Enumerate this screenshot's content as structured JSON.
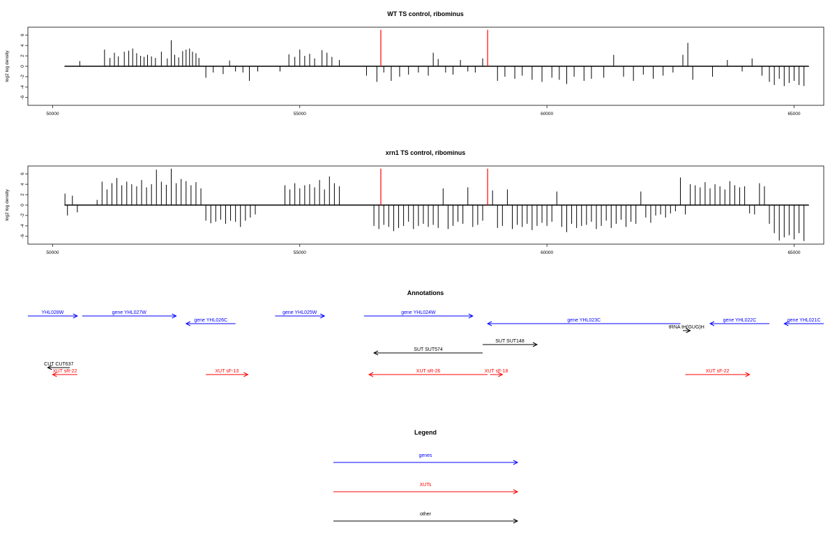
{
  "chart_data": [
    {
      "type": "bar",
      "title": "WT TS control, ribominus",
      "ylabel": "log2 log density",
      "xlim": [
        49500,
        65600
      ],
      "ylim": [
        -7.5,
        7.5
      ],
      "x_ticks": [
        50000,
        55000,
        60000,
        65000
      ],
      "y_ticks": [
        -6,
        -4,
        -2,
        0,
        2,
        4,
        6
      ],
      "baseline": [
        50240,
        65300
      ],
      "marker_color": "#ff0000",
      "markers": [
        {
          "x": 56640,
          "y": 7
        },
        {
          "x": 58800,
          "y": 7
        }
      ],
      "series": [
        {
          "x": [
            50550,
            51050,
            51160,
            51250,
            51330,
            51450,
            51540,
            51620,
            51700,
            51780,
            51850,
            51920,
            52000,
            52080,
            52200,
            52320,
            52400,
            52470,
            52550,
            52630,
            52700,
            52770,
            52830,
            52900,
            52960,
            53100,
            53250,
            53450,
            53580,
            53700,
            53850,
            53980,
            54150,
            54600,
            54780,
            54900,
            55000,
            55100,
            55200,
            55300,
            55450,
            55550,
            55650,
            55800,
            56350,
            56560,
            56700,
            56850,
            57020,
            57200,
            57400,
            57600,
            57700,
            57800,
            57950,
            58100,
            58250,
            58400,
            58550,
            58700,
            59000,
            59150,
            59350,
            59500,
            59700,
            59900,
            60100,
            60250,
            60400,
            60550,
            60750,
            60900,
            61150,
            61350,
            61550,
            61750,
            61950,
            62150,
            62350,
            62550,
            62750,
            62850,
            62950,
            63350,
            63650,
            63950,
            64150,
            64350,
            64500,
            64600,
            64700,
            64800,
            64900,
            65000,
            65100,
            65200
          ],
          "y": [
            1.0,
            3.2,
            1.6,
            2.6,
            1.9,
            2.8,
            3.0,
            3.4,
            2.5,
            2.0,
            1.8,
            2.2,
            1.9,
            1.6,
            2.8,
            1.5,
            5.0,
            2.2,
            1.7,
            2.9,
            3.2,
            3.4,
            2.8,
            2.5,
            1.6,
            -2.2,
            -1.2,
            -1.5,
            1.1,
            -1.0,
            -1.2,
            -2.8,
            -1.0,
            -1.0,
            2.3,
            1.8,
            3.2,
            2.0,
            2.4,
            1.5,
            3.1,
            2.6,
            1.8,
            1.2,
            -1.8,
            -3.0,
            -1.2,
            -2.8,
            -2.0,
            -1.6,
            -1.2,
            -1.8,
            2.6,
            1.4,
            -1.2,
            -1.6,
            1.2,
            -1.0,
            -1.2,
            1.5,
            -2.8,
            -2.0,
            -2.4,
            -1.8,
            -2.6,
            -3.0,
            -2.2,
            -2.6,
            -3.4,
            -2.0,
            -2.8,
            -2.4,
            -2.2,
            2.2,
            -2.0,
            -2.8,
            -1.6,
            -2.4,
            -1.8,
            -1.2,
            2.2,
            4.5,
            -2.6,
            -2.0,
            1.2,
            -1.0,
            1.5,
            -1.8,
            -3.0,
            -3.6,
            -2.4,
            -3.8,
            -3.2,
            -2.8,
            -3.6,
            -3.8
          ]
        }
      ]
    },
    {
      "type": "bar",
      "title": "xrn1 TS control, ribominus",
      "ylabel": "log2 log density",
      "xlim": [
        49500,
        65600
      ],
      "ylim": [
        -7.5,
        7.5
      ],
      "x_ticks": [
        50000,
        55000,
        60000,
        65000
      ],
      "y_ticks": [
        -6,
        -4,
        -2,
        0,
        2,
        4,
        6
      ],
      "baseline": [
        50240,
        65300
      ],
      "marker_color": "#ff0000",
      "markers": [
        {
          "x": 56640,
          "y": 7
        },
        {
          "x": 58800,
          "y": 7
        }
      ],
      "series": [
        {
          "x": [
            50250,
            50300,
            50400,
            50500,
            50900,
            51000,
            51100,
            51200,
            51300,
            51400,
            51500,
            51600,
            51700,
            51800,
            51900,
            52000,
            52100,
            52200,
            52300,
            52400,
            52500,
            52600,
            52700,
            52800,
            52900,
            53000,
            53100,
            53200,
            53300,
            53400,
            53500,
            53600,
            53700,
            53800,
            53900,
            54000,
            54100,
            54700,
            54800,
            54900,
            55000,
            55100,
            55200,
            55300,
            55400,
            55500,
            55600,
            55700,
            55800,
            56500,
            56600,
            56700,
            56800,
            56900,
            57000,
            57100,
            57200,
            57300,
            57400,
            57500,
            57600,
            57700,
            57800,
            57900,
            58000,
            58100,
            58200,
            58300,
            58400,
            58500,
            58600,
            58700,
            58900,
            59000,
            59100,
            59200,
            59300,
            59400,
            59500,
            59600,
            59700,
            59800,
            59900,
            60000,
            60100,
            60200,
            60300,
            60400,
            60500,
            60600,
            60700,
            60800,
            60900,
            61000,
            61100,
            61200,
            61300,
            61400,
            61500,
            61600,
            61700,
            61800,
            61900,
            62000,
            62100,
            62200,
            62300,
            62400,
            62500,
            62600,
            62700,
            62800,
            62900,
            63000,
            63100,
            63200,
            63300,
            63400,
            63500,
            63600,
            63700,
            63800,
            63900,
            64000,
            64100,
            64200,
            64300,
            64400,
            64500,
            64600,
            64700,
            64800,
            64900,
            65000,
            65100,
            65200
          ],
          "y": [
            2.2,
            -2.0,
            1.8,
            -1.4,
            1.0,
            4.5,
            3.0,
            4.2,
            5.2,
            3.8,
            4.5,
            4.0,
            3.6,
            4.8,
            3.4,
            4.0,
            6.8,
            4.5,
            3.9,
            7.0,
            4.2,
            5.0,
            4.6,
            3.8,
            4.4,
            3.2,
            -3.0,
            -3.5,
            -3.2,
            -2.8,
            -3.6,
            -3.0,
            -3.2,
            -4.2,
            -3.0,
            -2.4,
            -1.8,
            3.8,
            3.0,
            4.2,
            3.2,
            3.8,
            4.0,
            3.4,
            4.8,
            3.0,
            5.5,
            4.2,
            3.6,
            -4.0,
            -4.6,
            -3.8,
            -4.2,
            -5.0,
            -4.4,
            -4.0,
            -3.2,
            -4.6,
            -4.0,
            -3.6,
            -4.2,
            -3.8,
            -4.4,
            3.2,
            -4.6,
            -4.0,
            -3.2,
            -3.6,
            3.4,
            -4.2,
            -3.8,
            -3.0,
            2.8,
            -4.4,
            -4.0,
            3.0,
            -4.6,
            -3.8,
            -4.2,
            -3.6,
            -4.8,
            -4.0,
            -3.4,
            -4.0,
            -3.2,
            2.6,
            -4.2,
            -5.2,
            -3.6,
            -4.4,
            -4.0,
            -3.8,
            -3.2,
            -4.6,
            -4.0,
            -3.0,
            -4.4,
            -3.6,
            -2.8,
            -4.2,
            -3.2,
            -3.6,
            2.6,
            -2.4,
            -3.4,
            -2.0,
            -1.8,
            -2.4,
            -1.6,
            -1.2,
            5.3,
            -1.8,
            4.0,
            3.8,
            3.4,
            4.4,
            3.2,
            4.0,
            3.6,
            3.0,
            4.6,
            3.8,
            3.4,
            3.6,
            -1.6,
            -1.8,
            4.2,
            3.6,
            -3.6,
            -5.4,
            -6.8,
            -6.2,
            -5.8,
            -6.6,
            -5.4,
            -6.9
          ]
        }
      ]
    }
  ],
  "annotations": {
    "title": "Annotations",
    "xlim": [
      49500,
      65600
    ],
    "items": [
      {
        "label": "YHL028W",
        "kind": "gene",
        "strand": "+",
        "start": 49500,
        "end": 50500,
        "row": 0
      },
      {
        "label": "gene YHL027W",
        "kind": "gene",
        "strand": "+",
        "start": 50600,
        "end": 52500,
        "row": 0
      },
      {
        "label": "gene YHL026C",
        "kind": "gene",
        "strand": "-",
        "start": 52700,
        "end": 53700,
        "row": 1
      },
      {
        "label": "gene YHL025W",
        "kind": "gene",
        "strand": "+",
        "start": 54500,
        "end": 55500,
        "row": 0
      },
      {
        "label": "gene YHL024W",
        "kind": "gene",
        "strand": "+",
        "start": 56300,
        "end": 58500,
        "row": 0
      },
      {
        "label": "gene YHL023C",
        "kind": "gene",
        "strand": "-",
        "start": 58800,
        "end": 62700,
        "row": 1
      },
      {
        "label": "gene YHL022C",
        "kind": "gene",
        "strand": "-",
        "start": 63300,
        "end": 64500,
        "row": 1
      },
      {
        "label": "gene YHL021C",
        "kind": "gene",
        "strand": "-",
        "start": 64800,
        "end": 65600,
        "row": 1
      },
      {
        "label": "tRNA tH(GUG)H",
        "kind": "other",
        "strand": "+",
        "start": 62750,
        "end": 62900,
        "row": 2
      },
      {
        "label": "SUT SUT574",
        "kind": "other",
        "strand": "-",
        "start": 56500,
        "end": 58700,
        "row": 3
      },
      {
        "label": "SUT SUT148",
        "kind": "other",
        "strand": "+",
        "start": 58700,
        "end": 59800,
        "row": 4
      },
      {
        "label": "CUT CUT637",
        "kind": "other",
        "strand": "-",
        "start": 49900,
        "end": 50350,
        "row": 5
      },
      {
        "label": "XUT sR-22",
        "kind": "xut",
        "strand": "-",
        "start": 50000,
        "end": 50500,
        "row": 6
      },
      {
        "label": "XUT sF-13",
        "kind": "xut",
        "strand": "+",
        "start": 53100,
        "end": 53950,
        "row": 6
      },
      {
        "label": "XUT sR-26",
        "kind": "xut",
        "strand": "-",
        "start": 56400,
        "end": 58800,
        "row": 6
      },
      {
        "label": "XUT sF-18",
        "kind": "xut",
        "strand": "+",
        "start": 58850,
        "end": 59100,
        "row": 7
      },
      {
        "label": "XUT sF-22",
        "kind": "xut",
        "strand": "+",
        "start": 62800,
        "end": 64100,
        "row": 7
      }
    ]
  },
  "legend": {
    "title": "Legend",
    "items": [
      {
        "label": "genes",
        "kind": "gene"
      },
      {
        "label": "XUTs",
        "kind": "xut"
      },
      {
        "label": "other",
        "kind": "other"
      }
    ]
  },
  "colors": {
    "gene": "#0000ff",
    "xut": "#ff0000",
    "other": "#000000",
    "bar": "#000000"
  }
}
